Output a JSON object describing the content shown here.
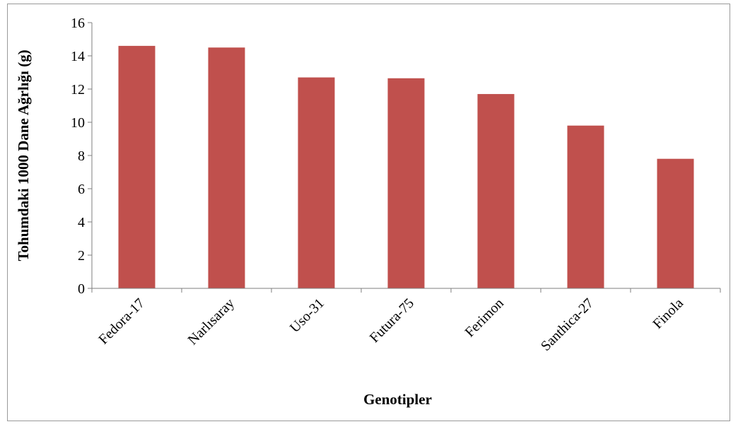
{
  "chart_data": {
    "type": "bar",
    "categories": [
      "Fedora-17",
      "Narlısaray",
      "Uso-31",
      "Futura-75",
      "Ferimon",
      "Santhica-27",
      "Finola"
    ],
    "values": [
      14.6,
      14.5,
      12.7,
      12.65,
      11.7,
      9.8,
      7.8
    ],
    "xlabel": "Genotipler",
    "ylabel": "Tohumdaki 1000 Dane Ağrlığı (g)",
    "ylim": [
      0,
      16
    ],
    "yticks": [
      "0",
      "2",
      "4",
      "6",
      "8",
      "10",
      "12",
      "14",
      "16"
    ],
    "bar_color": "#c0504d",
    "grid": false,
    "legend": "none"
  }
}
